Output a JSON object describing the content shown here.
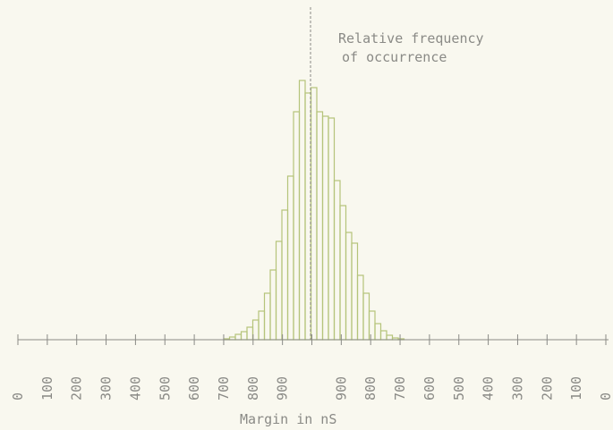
{
  "chart_data": {
    "type": "bar",
    "title": "Relative frequency\nof occurrence",
    "xlabel": "Margin in nS",
    "ylabel": "",
    "tick_labels": [
      "0",
      "100",
      "200",
      "300",
      "400",
      "500",
      "600",
      "700",
      "800",
      "900",
      "",
      "900",
      "800",
      "700",
      "600",
      "500",
      "400",
      "300",
      "200",
      "100",
      "0"
    ],
    "bin_width": 6.5,
    "bins": [
      {
        "x": 250,
        "y": 1
      },
      {
        "x": 256.5,
        "y": 3
      },
      {
        "x": 263,
        "y": 6
      },
      {
        "x": 269.5,
        "y": 9
      },
      {
        "x": 276,
        "y": 14
      },
      {
        "x": 282.5,
        "y": 22
      },
      {
        "x": 289,
        "y": 32
      },
      {
        "x": 295.5,
        "y": 52
      },
      {
        "x": 302,
        "y": 78
      },
      {
        "x": 308.5,
        "y": 110
      },
      {
        "x": 315,
        "y": 145
      },
      {
        "x": 321.5,
        "y": 183
      },
      {
        "x": 328,
        "y": 255
      },
      {
        "x": 334.5,
        "y": 290
      },
      {
        "x": 341,
        "y": 276
      },
      {
        "x": 347.5,
        "y": 282
      },
      {
        "x": 354,
        "y": 255
      },
      {
        "x": 360.5,
        "y": 250
      },
      {
        "x": 367,
        "y": 248
      },
      {
        "x": 373.5,
        "y": 178
      },
      {
        "x": 380,
        "y": 150
      },
      {
        "x": 386.5,
        "y": 120
      },
      {
        "x": 393,
        "y": 108
      },
      {
        "x": 399.5,
        "y": 72
      },
      {
        "x": 406,
        "y": 52
      },
      {
        "x": 412.5,
        "y": 32
      },
      {
        "x": 419,
        "y": 18
      },
      {
        "x": 425.5,
        "y": 10
      },
      {
        "x": 432,
        "y": 5
      },
      {
        "x": 438.5,
        "y": 2
      },
      {
        "x": 445,
        "y": 1
      }
    ],
    "xlim": [
      20,
      680
    ],
    "ylim": [
      0,
      300
    ],
    "grid": false,
    "colors": {
      "bars": "#b5c47a",
      "axis": "#8a8a86",
      "text": "#8a8a86"
    }
  }
}
